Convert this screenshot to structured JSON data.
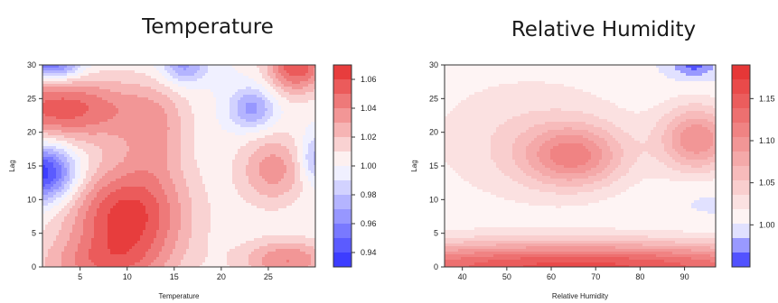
{
  "chart_data": [
    {
      "type": "heatmap",
      "title": "Temperature",
      "xlabel": "Temperature",
      "ylabel": "Lag",
      "xlim": [
        1,
        30
      ],
      "ylim": [
        0,
        30
      ],
      "xticks": [
        5,
        10,
        15,
        20,
        25
      ],
      "yticks": [
        0,
        5,
        10,
        15,
        20,
        25,
        30
      ],
      "colorbar": {
        "min": 0.93,
        "max": 1.07,
        "ticks": [
          "1.06",
          "1.04",
          "1.02",
          "1.00",
          "0.98",
          "0.96",
          "0.94"
        ],
        "tick_values": [
          1.06,
          1.04,
          1.02,
          1.0,
          0.98,
          0.96,
          0.94
        ],
        "low_color": "#2e2eff",
        "mid_color": "#ffffff",
        "high_color": "#e52e2e"
      },
      "features": [
        {
          "x": 10,
          "y": 7.5,
          "value": 1.065,
          "sx": 4.5,
          "sy": 5.5
        },
        {
          "x": 3,
          "y": 23.5,
          "value": 1.055,
          "sx": 6.0,
          "sy": 3.5
        },
        {
          "x": 28,
          "y": 30,
          "value": 1.06,
          "sx": 2.2,
          "sy": 3.0
        },
        {
          "x": 25.5,
          "y": 14.5,
          "value": 1.035,
          "sx": 2.6,
          "sy": 3.8
        },
        {
          "x": 27,
          "y": 1,
          "value": 1.04,
          "sx": 3.5,
          "sy": 2.2
        },
        {
          "x": 7,
          "y": 0,
          "value": 1.03,
          "sx": 5.0,
          "sy": 3.0
        },
        {
          "x": 1,
          "y": 14,
          "value": 0.93,
          "sx": 2.5,
          "sy": 3.0
        },
        {
          "x": 2,
          "y": 30,
          "value": 0.945,
          "sx": 2.2,
          "sy": 1.6
        },
        {
          "x": 16,
          "y": 30,
          "value": 0.965,
          "sx": 1.7,
          "sy": 2.0
        },
        {
          "x": 23.3,
          "y": 23.5,
          "value": 0.965,
          "sx": 1.7,
          "sy": 2.2
        },
        {
          "x": 30,
          "y": 16,
          "value": 0.97,
          "sx": 1.2,
          "sy": 2.5
        },
        {
          "x": 13,
          "y": 20,
          "value": 1.025,
          "sx": 2.5,
          "sy": 5.0
        }
      ]
    },
    {
      "type": "heatmap",
      "title": "Relative Humidity",
      "xlabel": "Relative Humidity",
      "ylabel": "Lag",
      "xlim": [
        36,
        97
      ],
      "ylim": [
        0,
        30
      ],
      "xticks": [
        40,
        50,
        60,
        70,
        80,
        90
      ],
      "yticks": [
        0,
        5,
        10,
        15,
        20,
        25,
        30
      ],
      "colorbar": {
        "min": 0.95,
        "max": 1.19,
        "ticks": [
          "1.15",
          "1.10",
          "1.05",
          "1.00"
        ],
        "tick_values": [
          1.15,
          1.1,
          1.05,
          1.0
        ],
        "low_color": "#2e2eff",
        "mid_color": "#ffffff",
        "high_color": "#e52e2e"
      },
      "features": [
        {
          "x": 66,
          "y": 0,
          "value": 1.16,
          "sx": 45,
          "sy": 2.6
        },
        {
          "x": 65,
          "y": 16.5,
          "value": 1.09,
          "sx": 8,
          "sy": 3.2
        },
        {
          "x": 93,
          "y": 19,
          "value": 1.1,
          "sx": 6,
          "sy": 3.5
        },
        {
          "x": 55,
          "y": 19,
          "value": 1.035,
          "sx": 18,
          "sy": 7.5
        },
        {
          "x": 92,
          "y": 30,
          "value": 0.96,
          "sx": 3.5,
          "sy": 1.3
        },
        {
          "x": 36,
          "y": 18,
          "value": 1.0,
          "sx": 4.0,
          "sy": 14.0
        },
        {
          "x": 94,
          "y": 11,
          "value": 0.995,
          "sx": 5.0,
          "sy": 1.8
        }
      ]
    }
  ]
}
